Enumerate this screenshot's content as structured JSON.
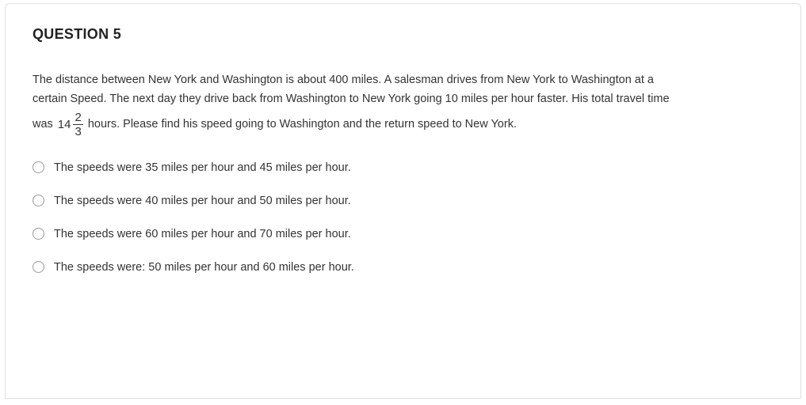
{
  "card": {
    "border_color": "#e0e0e0",
    "background_color": "#ffffff"
  },
  "question": {
    "title": "QUESTION 5",
    "body_line1": "The distance between New York and Washington is about 400 miles.  A salesman drives from New York to Washington at a",
    "body_line2": "certain Speed. The next day they drive back from Washington to New York going 10 miles per hour faster. His total travel time",
    "body_line3_pre": "was ",
    "mixed_whole": "14",
    "mixed_num": "2",
    "mixed_den": "3",
    "body_line3_post": " hours.  Please find his speed going to Washington and the return speed to New York."
  },
  "options": [
    {
      "label": "The speeds were 35 miles per hour and 45 miles per hour."
    },
    {
      "label": "The speeds were 40 miles per hour and 50 miles per hour."
    },
    {
      "label": "The speeds were 60 miles per hour and 70 miles per hour."
    },
    {
      "label": "The speeds were: 50 miles per hour and 60 miles per hour."
    }
  ],
  "typography": {
    "title_fontsize": 18,
    "title_weight": 700,
    "body_fontsize": 14.5,
    "text_color": "#333333"
  }
}
